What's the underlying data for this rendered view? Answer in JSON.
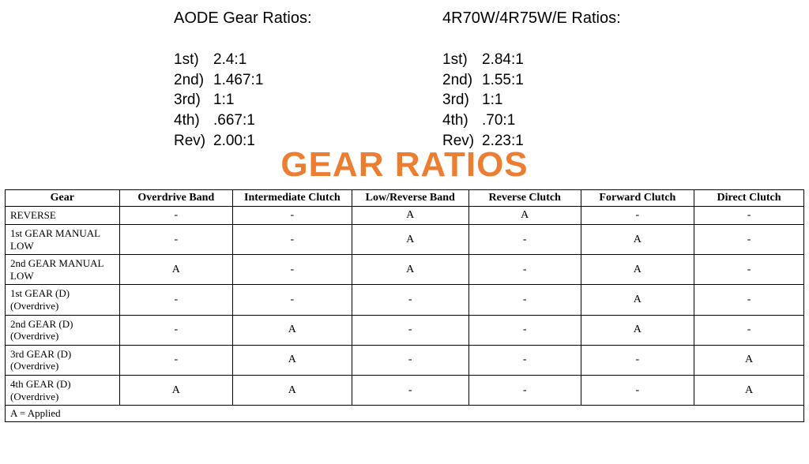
{
  "ratios": {
    "left": {
      "title": "AODE Gear Ratios:",
      "rows": [
        {
          "label": "1st)",
          "value": "2.4:1"
        },
        {
          "label": "2nd)",
          "value": "1.467:1"
        },
        {
          "label": "3rd)",
          "value": "1:1"
        },
        {
          "label": "4th)",
          "value": ".667:1"
        },
        {
          "label": "Rev)",
          "value": "2.00:1"
        }
      ]
    },
    "right": {
      "title": "4R70W/4R75W/E Ratios:",
      "rows": [
        {
          "label": "1st)",
          "value": "2.84:1"
        },
        {
          "label": "2nd)",
          "value": "1.55:1"
        },
        {
          "label": "3rd)",
          "value": "1:1"
        },
        {
          "label": "4th)",
          "value": ".70:1"
        },
        {
          "label": "Rev)",
          "value": "2.23:1"
        }
      ]
    }
  },
  "big_title": "GEAR RATIOS",
  "big_title_color": "#ed7d31",
  "table": {
    "columns": [
      "Gear",
      "Overdrive Band",
      "Intermediate Clutch",
      "Low/Reverse Band",
      "Reverse Clutch",
      "Forward Clutch",
      "Direct Clutch"
    ],
    "rows": [
      {
        "gear": "REVERSE",
        "cells": [
          "-",
          "-",
          "A",
          "A",
          "-",
          "-"
        ]
      },
      {
        "gear": "1st GEAR MANUAL\nLOW",
        "cells": [
          "-",
          "-",
          "A",
          "-",
          "A",
          "-"
        ]
      },
      {
        "gear": "2nd GEAR MANUAL\nLOW",
        "cells": [
          "A",
          "-",
          "A",
          "-",
          "A",
          "-"
        ]
      },
      {
        "gear": "1st GEAR (D)\n(Overdrive)",
        "cells": [
          "-",
          "-",
          "-",
          "-",
          "A",
          "-"
        ]
      },
      {
        "gear": "2nd GEAR (D)\n(Overdrive)",
        "cells": [
          "-",
          "A",
          "-",
          "-",
          "A",
          "-"
        ]
      },
      {
        "gear": "3rd GEAR (D)\n(Overdrive)",
        "cells": [
          "-",
          "A",
          "-",
          "-",
          "-",
          "A"
        ]
      },
      {
        "gear": "4th GEAR (D)\n(Overdrive)",
        "cells": [
          "A",
          "A",
          "-",
          "-",
          "-",
          "A"
        ]
      }
    ],
    "footer": "A = Applied"
  }
}
